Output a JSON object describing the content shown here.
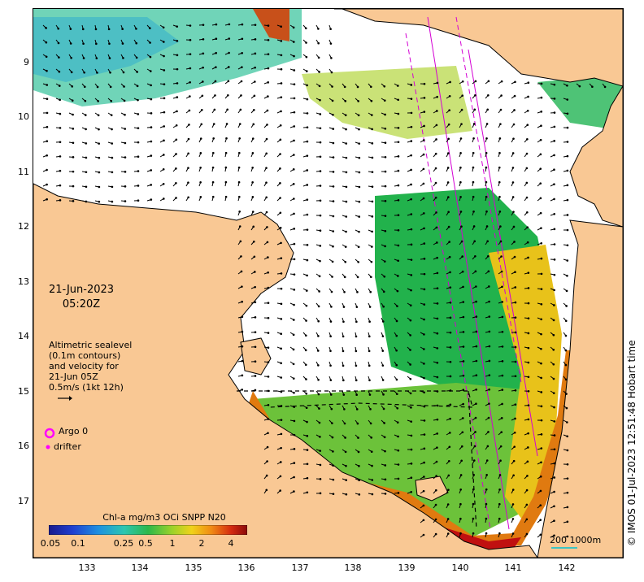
{
  "map": {
    "lat_ticks": [
      "9",
      "10",
      "11",
      "12",
      "13",
      "14",
      "15",
      "16",
      "17"
    ],
    "lon_ticks": [
      "133",
      "134",
      "135",
      "136",
      "137",
      "138",
      "139",
      "140",
      "141",
      "142"
    ],
    "colors": {
      "land": "#f9c894",
      "sea_no_data": "#ffffff",
      "coast": "#000000",
      "track": "#d400d4"
    }
  },
  "annotations": {
    "date": "21-Jun-2023",
    "time": "05:20Z",
    "altimetry": [
      "Altimetric sealevel",
      "(0.1m contours)",
      "and velocity for",
      "21-Jun 05Z",
      "0.5m/s (1kt 12h)"
    ],
    "argo": "Argo 0",
    "drifter": "drifter",
    "scale": "200  1000m",
    "credit": "© IMOS 01-Jul-2023 12:51:48 Hobart time"
  },
  "colorbar": {
    "title": "Chl-a mg/m3 OCi SNPP N20",
    "ticks": [
      "0.05",
      "0.1",
      "0.25",
      "0.5",
      "1",
      "2",
      "4"
    ]
  }
}
